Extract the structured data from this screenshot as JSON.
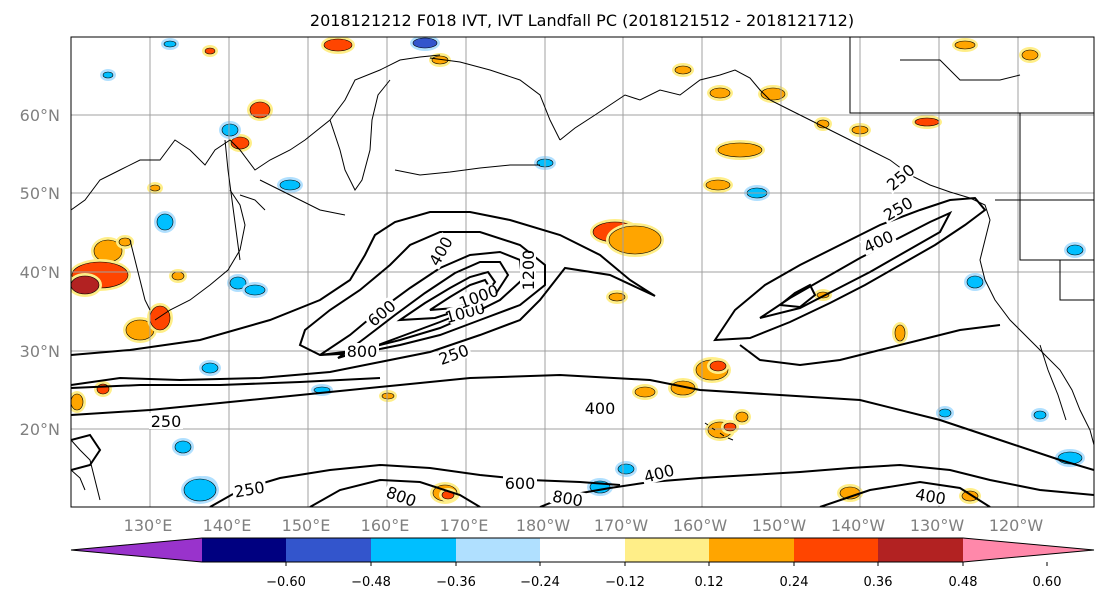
{
  "title": "2018121212 F018 IVT, IVT Landfall PC (2018121512 - 2018121712)",
  "lat_labels": [
    "60°N",
    "50°N",
    "40°N",
    "30°N",
    "20°N"
  ],
  "lon_labels": [
    "130°E",
    "140°E",
    "150°E",
    "160°E",
    "170°E",
    "180°W",
    "170°W",
    "160°W",
    "150°W",
    "140°W",
    "130°W",
    "120°W"
  ],
  "colorbar": {
    "colors": [
      "#9933cc",
      "#000080",
      "#3355cc",
      "#00bfff",
      "#b0e0ff",
      "#ffffff",
      "#ffee88",
      "#ffa500",
      "#ff4500",
      "#b22222",
      "#ff88aa"
    ],
    "tick_labels": [
      "−0.60",
      "−0.48",
      "−0.36",
      "−0.24",
      "−0.12",
      "0.12",
      "0.24",
      "0.36",
      "0.48",
      "0.60"
    ]
  },
  "contour_labels": [
    "800",
    "600",
    "400",
    "1000",
    "1200",
    "1000",
    "250",
    "250",
    "250",
    "400",
    "250",
    "400",
    "800",
    "600",
    "800",
    "400",
    "400",
    "250"
  ]
}
